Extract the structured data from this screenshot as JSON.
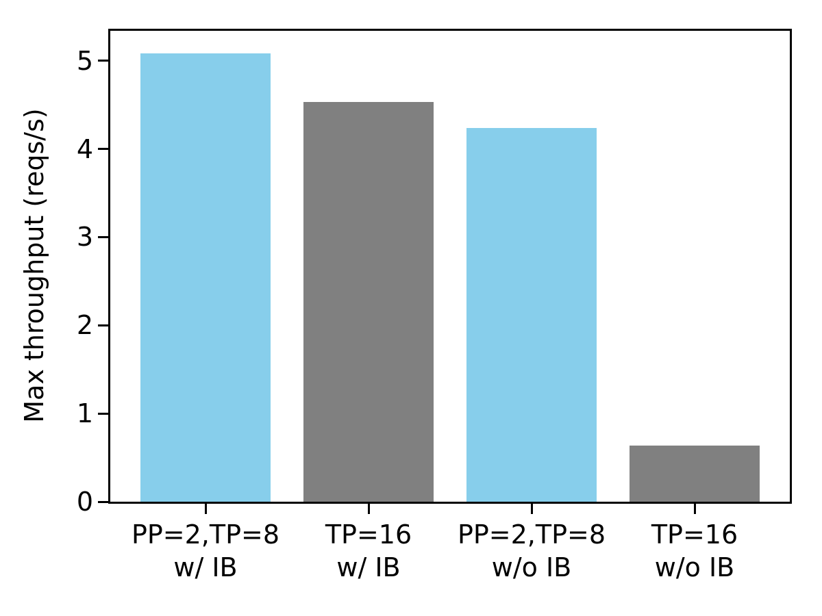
{
  "chart_data": {
    "type": "bar",
    "title": "",
    "xlabel": "",
    "ylabel": "Max throughput (reqs/s)",
    "categories": [
      [
        "PP=2,TP=8",
        "w/ IB"
      ],
      [
        "TP=16",
        "w/ IB"
      ],
      [
        "PP=2,TP=8",
        "w/o IB"
      ],
      [
        "TP=16",
        "w/o IB"
      ]
    ],
    "values": [
      5.08,
      4.53,
      4.24,
      0.64
    ],
    "bar_colors": [
      "#87ceeb",
      "#808080",
      "#87ceeb",
      "#808080"
    ],
    "yticks": [
      0,
      1,
      2,
      3,
      4,
      5
    ],
    "ylim": [
      0,
      5.34
    ],
    "grid": false,
    "legend": "none",
    "colors": {
      "skyblue": "#87ceeb",
      "gray": "#808080",
      "axis": "#000000",
      "background": "#ffffff"
    }
  }
}
